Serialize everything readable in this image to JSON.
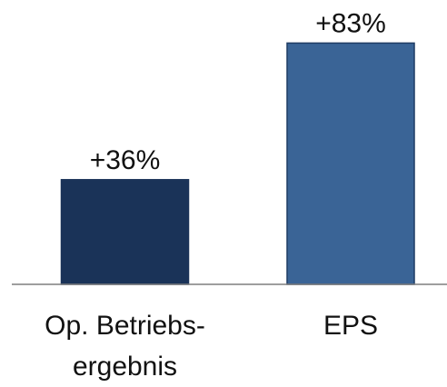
{
  "chart_data": {
    "type": "bar",
    "categories": [
      "Op. Betriebs-\nergebnis",
      "EPS"
    ],
    "values": [
      36,
      83
    ],
    "value_labels": [
      "+36%",
      "+83%"
    ],
    "colors": [
      "#1a3358",
      "#3a6496"
    ],
    "ylim": [
      0,
      100
    ]
  }
}
